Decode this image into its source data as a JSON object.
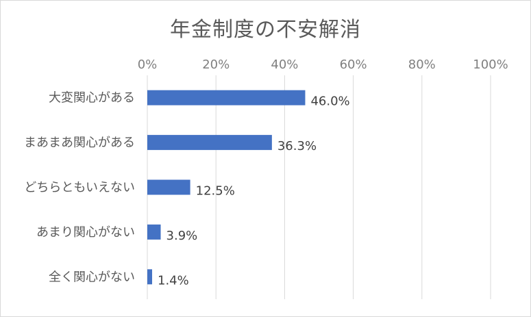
{
  "chart_data": {
    "type": "bar",
    "orientation": "horizontal",
    "title": "年金制度の不安解消",
    "categories": [
      "大変関心がある",
      "まあまあ関心がある",
      "どちらともいえない",
      "あまり関心がない",
      "全く関心がない"
    ],
    "values": [
      46.0,
      36.3,
      12.5,
      3.9,
      1.4
    ],
    "data_labels": [
      "46.0%",
      "36.3%",
      "12.5%",
      "3.9%",
      "1.4%"
    ],
    "xlim": [
      0,
      100
    ],
    "x_ticks": [
      "0%",
      "20%",
      "40%",
      "60%",
      "80%",
      "100%"
    ],
    "x_tick_values": [
      0,
      20,
      40,
      60,
      80,
      100
    ],
    "x_axis_position": "top",
    "grid": true,
    "legend": "none",
    "bar_color": "#4472c4",
    "grid_color": "#d9d9d9"
  }
}
